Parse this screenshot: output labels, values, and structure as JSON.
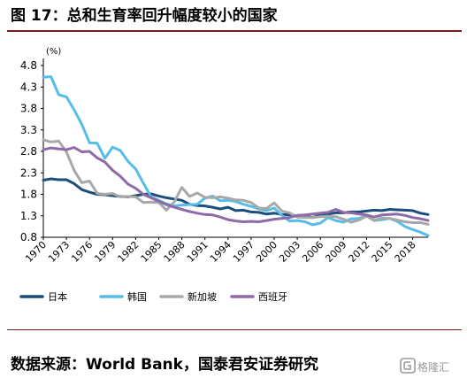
{
  "title": "图 17：总和生育率回升幅度较小的国家",
  "source": "数据来源：World Bank，国泰君安证券研究",
  "watermark": "格隆汇",
  "chart_data": {
    "type": "line",
    "unit_label": "(%)",
    "x_ticks": [
      1970,
      1973,
      1976,
      1979,
      1982,
      1985,
      1988,
      1991,
      1994,
      1997,
      2000,
      2003,
      2006,
      2009,
      2012,
      2015,
      2018
    ],
    "y_ticks": [
      0.8,
      1.3,
      1.8,
      2.3,
      2.8,
      3.3,
      3.8,
      4.3,
      4.8
    ],
    "ylim": [
      0.8,
      4.8
    ],
    "xlim": [
      1970,
      2020
    ],
    "legend_position": "bottom",
    "colors": {
      "日本": "#1b4e7a",
      "韩国": "#57bde6",
      "新加坡": "#a8a8a8",
      "西班牙": "#8e6aa8"
    },
    "x": [
      1970,
      1971,
      1972,
      1973,
      1974,
      1975,
      1976,
      1977,
      1978,
      1979,
      1980,
      1981,
      1982,
      1983,
      1984,
      1985,
      1986,
      1987,
      1988,
      1989,
      1990,
      1991,
      1992,
      1993,
      1994,
      1995,
      1996,
      1997,
      1998,
      1999,
      2000,
      2001,
      2002,
      2003,
      2004,
      2005,
      2006,
      2007,
      2008,
      2009,
      2010,
      2011,
      2012,
      2013,
      2014,
      2015,
      2016,
      2017,
      2018,
      2019,
      2020
    ],
    "series": [
      {
        "name": "日本",
        "values": [
          2.13,
          2.16,
          2.14,
          2.14,
          2.05,
          1.91,
          1.85,
          1.8,
          1.79,
          1.77,
          1.75,
          1.74,
          1.77,
          1.8,
          1.81,
          1.76,
          1.72,
          1.69,
          1.66,
          1.57,
          1.54,
          1.53,
          1.5,
          1.46,
          1.5,
          1.42,
          1.43,
          1.39,
          1.38,
          1.34,
          1.36,
          1.33,
          1.32,
          1.29,
          1.29,
          1.26,
          1.32,
          1.34,
          1.37,
          1.37,
          1.39,
          1.39,
          1.41,
          1.43,
          1.42,
          1.45,
          1.44,
          1.43,
          1.42,
          1.36,
          1.33
        ]
      },
      {
        "name": "韩国",
        "values": [
          4.53,
          4.54,
          4.12,
          4.07,
          3.77,
          3.43,
          3.0,
          2.99,
          2.64,
          2.9,
          2.82,
          2.57,
          2.39,
          2.06,
          1.74,
          1.66,
          1.58,
          1.53,
          1.55,
          1.56,
          1.57,
          1.71,
          1.76,
          1.65,
          1.66,
          1.63,
          1.57,
          1.52,
          1.46,
          1.42,
          1.48,
          1.31,
          1.18,
          1.19,
          1.16,
          1.09,
          1.13,
          1.26,
          1.19,
          1.15,
          1.23,
          1.24,
          1.3,
          1.19,
          1.21,
          1.24,
          1.17,
          1.05,
          0.98,
          0.92,
          0.84
        ]
      },
      {
        "name": "新加坡",
        "values": [
          3.07,
          3.02,
          3.04,
          2.79,
          2.36,
          2.07,
          2.11,
          1.82,
          1.8,
          1.82,
          1.74,
          1.75,
          1.74,
          1.61,
          1.62,
          1.61,
          1.43,
          1.62,
          1.96,
          1.75,
          1.83,
          1.73,
          1.72,
          1.74,
          1.71,
          1.67,
          1.66,
          1.61,
          1.48,
          1.47,
          1.6,
          1.41,
          1.37,
          1.27,
          1.26,
          1.26,
          1.28,
          1.29,
          1.28,
          1.22,
          1.15,
          1.2,
          1.29,
          1.19,
          1.25,
          1.24,
          1.2,
          1.16,
          1.14,
          1.14,
          1.1
        ]
      },
      {
        "name": "西班牙",
        "values": [
          2.84,
          2.88,
          2.86,
          2.84,
          2.89,
          2.79,
          2.8,
          2.65,
          2.55,
          2.36,
          2.22,
          2.04,
          1.94,
          1.8,
          1.72,
          1.64,
          1.56,
          1.5,
          1.45,
          1.4,
          1.36,
          1.33,
          1.32,
          1.27,
          1.21,
          1.18,
          1.16,
          1.17,
          1.16,
          1.19,
          1.22,
          1.24,
          1.26,
          1.31,
          1.32,
          1.34,
          1.36,
          1.38,
          1.45,
          1.38,
          1.37,
          1.34,
          1.32,
          1.27,
          1.32,
          1.33,
          1.34,
          1.31,
          1.26,
          1.23,
          1.19
        ]
      }
    ]
  }
}
